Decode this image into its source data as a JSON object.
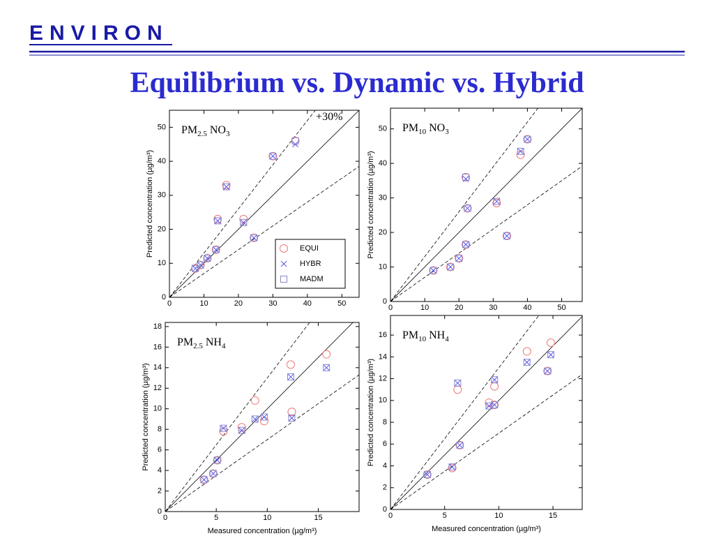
{
  "slide": {
    "logo": "ENVIRON",
    "title": "Equilibrium vs. Dynamic vs. Hybrid"
  },
  "chart_data": [
    {
      "type": "scatter",
      "panel_label": [
        "PM",
        "2.5",
        " NO",
        "3"
      ],
      "y_label": "Predicted concentration (µg/m³)",
      "annotation": "+30%",
      "legend": "lower right",
      "reference_slopes": [
        1,
        1.3,
        0.7
      ],
      "xlim": [
        0,
        55
      ],
      "ylim": [
        0,
        55
      ],
      "xticks": [
        0,
        10,
        20,
        30,
        40,
        50
      ],
      "yticks": [
        0,
        10,
        20,
        30,
        40,
        50
      ],
      "x": [
        7.5,
        9,
        11,
        13.5,
        14,
        16.5,
        21.5,
        24.5,
        30,
        36.5
      ],
      "series": [
        {
          "name": "EQUI",
          "marker": "circle",
          "color": "#ee7777",
          "values": [
            8.5,
            9.5,
            11.5,
            14,
            23,
            33,
            23,
            17.5,
            41.5,
            46
          ]
        },
        {
          "name": "HYBR",
          "marker": "x",
          "color": "#5555ee",
          "values": [
            8.5,
            9.5,
            11.5,
            14,
            22.5,
            32.5,
            22,
            17.5,
            41.5,
            45
          ]
        },
        {
          "name": "MADM",
          "marker": "square",
          "color": "#8888cc",
          "values": [
            8.5,
            9.5,
            11.5,
            14,
            22.5,
            32.5,
            22,
            17.5,
            41.5,
            46
          ]
        }
      ]
    },
    {
      "type": "scatter",
      "panel_label": [
        "PM",
        "10",
        " NO",
        "3"
      ],
      "y_label": "Predicted concentration (µg/m³)",
      "reference_slopes": [
        1,
        1.3,
        0.7
      ],
      "xlim": [
        0,
        56
      ],
      "ylim": [
        0,
        56
      ],
      "xticks": [
        0,
        10,
        20,
        30,
        40,
        50
      ],
      "yticks": [
        0,
        10,
        20,
        30,
        40,
        50
      ],
      "x": [
        12.5,
        17.5,
        20,
        22,
        22,
        22.5,
        31,
        34,
        38,
        40
      ],
      "series": [
        {
          "marker": "circle",
          "color": "#ee7777",
          "values": [
            9,
            10,
            12.5,
            16.5,
            36,
            27,
            28.5,
            19,
            42.5,
            47
          ]
        },
        {
          "marker": "x",
          "color": "#5555ee",
          "values": [
            9,
            10,
            12.5,
            16.5,
            35.5,
            27,
            29,
            19,
            43.5,
            47
          ]
        },
        {
          "marker": "square",
          "color": "#8888cc",
          "values": [
            9,
            10,
            12.5,
            16.5,
            36,
            27,
            29,
            19,
            43.5,
            47
          ]
        }
      ]
    },
    {
      "type": "scatter",
      "panel_label": [
        "PM",
        "2.5",
        " NH",
        "4"
      ],
      "y_label": "Predicted concentration (µg/m³)",
      "x_label": "Measured concentration (µg/m³)",
      "reference_slopes": [
        1,
        1.3,
        0.7
      ],
      "xlim": [
        0,
        19
      ],
      "ylim": [
        0,
        18.4
      ],
      "xticks": [
        0,
        5,
        10,
        15
      ],
      "yticks": [
        0,
        2,
        4,
        6,
        8,
        10,
        12,
        14,
        16,
        18
      ],
      "x": [
        3.8,
        4.7,
        5.1,
        5.7,
        7.5,
        8.8,
        9.7,
        12.3,
        12.4,
        15.8
      ],
      "series": [
        {
          "marker": "circle",
          "color": "#ee7777",
          "values": [
            3.1,
            3.7,
            5,
            7.8,
            8.2,
            10.8,
            8.8,
            14.3,
            9.7,
            15.3
          ]
        },
        {
          "marker": "x",
          "color": "#5555ee",
          "values": [
            3.1,
            3.7,
            5,
            8.1,
            7.9,
            9,
            9.2,
            13.1,
            9.1,
            14
          ]
        },
        {
          "marker": "square",
          "color": "#8888cc",
          "values": [
            3.1,
            3.7,
            5,
            8.1,
            7.9,
            9,
            9.2,
            13.1,
            9.1,
            14
          ]
        }
      ]
    },
    {
      "type": "scatter",
      "panel_label": [
        "PM",
        "10",
        " NH",
        "4"
      ],
      "y_label": "Predicted concentration (µg/m³)",
      "x_label": "Measured concentration (µg/m³)",
      "reference_slopes": [
        1,
        1.3,
        0.7
      ],
      "xlim": [
        0,
        17.7
      ],
      "ylim": [
        0,
        17.8
      ],
      "xticks": [
        0,
        5,
        10,
        15
      ],
      "yticks": [
        0,
        2,
        4,
        6,
        8,
        10,
        12,
        14,
        16
      ],
      "x": [
        3.4,
        5.7,
        6.2,
        6.4,
        9.1,
        9.6,
        9.6,
        12.6,
        14.5,
        14.8
      ],
      "series": [
        {
          "marker": "circle",
          "color": "#ee7777",
          "values": [
            3.2,
            3.8,
            11,
            5.9,
            9.8,
            11.3,
            9.6,
            14.5,
            12.7,
            15.3
          ]
        },
        {
          "marker": "x",
          "color": "#5555ee",
          "values": [
            3.2,
            3.9,
            11.6,
            5.9,
            9.5,
            11.9,
            9.6,
            13.5,
            12.7,
            14.2
          ]
        },
        {
          "marker": "square",
          "color": "#8888cc",
          "values": [
            3.2,
            3.9,
            11.6,
            5.9,
            9.5,
            11.9,
            9.6,
            13.5,
            12.7,
            14.2
          ]
        }
      ]
    }
  ]
}
